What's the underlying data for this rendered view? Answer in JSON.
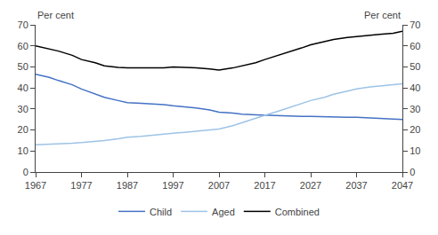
{
  "chart_data": {
    "type": "line",
    "ylabel": "Per cent",
    "y2label": "Per cent",
    "x": [
      1967,
      1970,
      1972,
      1975,
      1977,
      1980,
      1982,
      1985,
      1987,
      1990,
      1992,
      1995,
      1997,
      2000,
      2002,
      2005,
      2007,
      2010,
      2012,
      2015,
      2017,
      2020,
      2022,
      2025,
      2027,
      2030,
      2032,
      2035,
      2037,
      2040,
      2042,
      2045,
      2047
    ],
    "series": [
      {
        "name": "Child",
        "color": "#4472C4",
        "values": [
          46.5,
          45.0,
          43.5,
          41.5,
          39.5,
          37.0,
          35.5,
          34.0,
          33.0,
          32.7,
          32.5,
          32.0,
          31.5,
          31.0,
          30.5,
          29.5,
          28.5,
          28.0,
          27.5,
          27.2,
          27.0,
          26.8,
          26.5,
          26.5,
          26.5,
          26.2,
          26.0,
          26.0,
          26.0,
          25.8,
          25.5,
          25.2,
          25.0
        ]
      },
      {
        "name": "Aged",
        "color": "#9DC3E6",
        "values": [
          13.0,
          13.2,
          13.5,
          13.7,
          14.0,
          14.5,
          15.0,
          15.8,
          16.5,
          17.0,
          17.5,
          18.0,
          18.5,
          19.0,
          19.5,
          20.0,
          20.5,
          22.0,
          23.5,
          25.5,
          27.0,
          29.0,
          30.5,
          32.5,
          34.0,
          35.5,
          37.0,
          38.5,
          39.5,
          40.5,
          41.0,
          41.5,
          42.0
        ]
      },
      {
        "name": "Combined",
        "color": "#000000",
        "values": [
          60.0,
          58.5,
          57.5,
          55.5,
          53.5,
          52.0,
          50.5,
          49.8,
          49.5,
          49.5,
          49.5,
          49.5,
          50.0,
          49.8,
          49.5,
          49.0,
          48.5,
          49.5,
          50.5,
          52.0,
          53.5,
          55.5,
          57.0,
          59.0,
          60.5,
          62.0,
          63.0,
          64.0,
          64.5,
          65.0,
          65.5,
          66.0,
          67.0
        ]
      }
    ],
    "xlim": [
      1967,
      2047
    ],
    "xticks": [
      1967,
      1977,
      1987,
      1997,
      2007,
      2017,
      2027,
      2037,
      2047
    ],
    "ylim": [
      0,
      70
    ],
    "yticks": [
      0,
      10,
      20,
      30,
      40,
      50,
      60,
      70
    ],
    "y2lim": [
      0,
      70
    ],
    "y2ticks": [
      0,
      10,
      20,
      30,
      40,
      50,
      60,
      70
    ],
    "grid": false,
    "legend": "bottom"
  }
}
